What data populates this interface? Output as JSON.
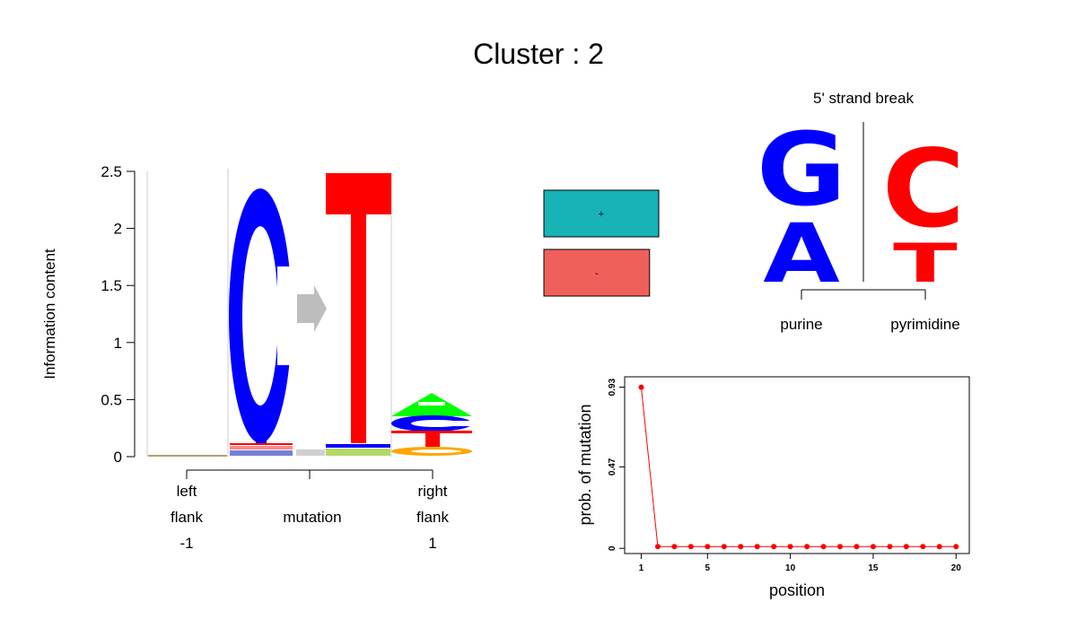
{
  "title": "Cluster : 2",
  "colors": {
    "A": "#00ff00",
    "C": "#0000ff",
    "G": "#ffa500",
    "T": "#ff0000",
    "plus_strand": "#17b3b6",
    "minus_strand": "#f0605a",
    "purine": "#0000ff",
    "pyrimidine": "#ff0000",
    "arrow": "#bdbdbd",
    "mutation_points": "#ff0000"
  },
  "logo": {
    "ylabel": "Information content",
    "yticks": [
      "0",
      "0.5",
      "1",
      "1.5",
      "2",
      "2.5"
    ],
    "ylim": [
      0,
      2.5
    ],
    "mutation_from": "C",
    "mutation_to": "T",
    "mutation_from_height": 2.35,
    "mutation_to_height": 2.35,
    "right_flank_letters": [
      {
        "base": "A",
        "height": 0.2
      },
      {
        "base": "C",
        "height": 0.2
      },
      {
        "base": "G",
        "height": 0.09
      }
    ],
    "group_labels": {
      "left_line1": "left",
      "left_line2": "flank",
      "left_pos": "-1",
      "mutation": "mutation",
      "right_line1": "right",
      "right_line2": "flank",
      "right_pos": "1"
    }
  },
  "strand": {
    "plus_label": "+",
    "minus_label": "-",
    "plus_value": 1.0,
    "minus_value": 0.92
  },
  "strand_break": {
    "title": "5' strand break",
    "left_top": "G",
    "left_bottom": "A",
    "right_top": "C",
    "right_bottom": "T",
    "purine_label": "purine",
    "pyrimidine_label": "pyrimidine"
  },
  "chart_data": {
    "type": "line",
    "xlabel": "position",
    "ylabel": "prob. of mutation",
    "x": [
      1,
      2,
      3,
      4,
      5,
      6,
      7,
      8,
      9,
      10,
      11,
      12,
      13,
      14,
      15,
      16,
      17,
      18,
      19,
      20
    ],
    "values": [
      0.93,
      0.01,
      0.01,
      0.01,
      0.01,
      0.01,
      0.01,
      0.01,
      0.01,
      0.01,
      0.01,
      0.01,
      0.01,
      0.01,
      0.01,
      0.01,
      0.01,
      0.01,
      0.01,
      0.01
    ],
    "xticks": [
      "1",
      "5",
      "10",
      "15",
      "20"
    ],
    "yticks": [
      "0",
      "0.47",
      "0.93"
    ],
    "xlim": [
      0,
      20.8
    ],
    "ylim": [
      -0.03,
      0.99
    ]
  }
}
